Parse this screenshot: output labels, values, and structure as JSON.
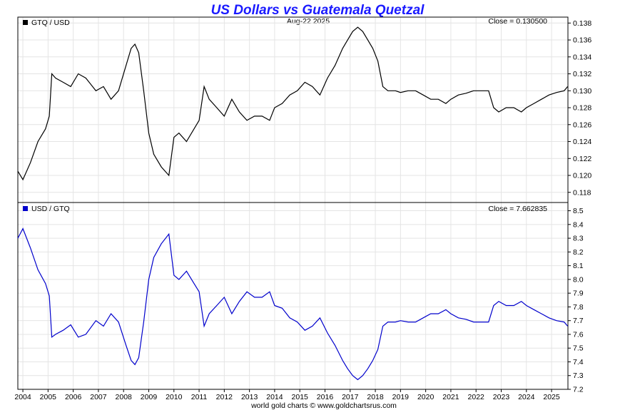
{
  "chart_data": {
    "type": "line",
    "title": "US Dollars vs Guatemala Quetzal",
    "date_label": "Aug-22  2025",
    "footer": "world gold charts © www.goldchartsrus.com",
    "x_ticks": [
      "2004",
      "2005",
      "2006",
      "2007",
      "2008",
      "2009",
      "2010",
      "2011",
      "2012",
      "2013",
      "2014",
      "2015",
      "2016",
      "2017",
      "2018",
      "2019",
      "2020",
      "2021",
      "2022",
      "2023",
      "2024",
      "2025"
    ],
    "x_range": [
      2003.8,
      2025.65
    ],
    "panels": [
      {
        "series_name": "GTQ / USD",
        "color": "#000000",
        "close_label": "Close = 0.130500",
        "ylim": [
          0.1168,
          0.1387
        ],
        "y_ticks": [
          "0.118",
          "0.120",
          "0.122",
          "0.124",
          "0.126",
          "0.128",
          "0.130",
          "0.132",
          "0.134",
          "0.136",
          "0.138"
        ],
        "x": [
          2003.8,
          2004.0,
          2004.3,
          2004.6,
          2004.9,
          2005.05,
          2005.15,
          2005.3,
          2005.6,
          2005.9,
          2006.2,
          2006.5,
          2006.9,
          2007.2,
          2007.5,
          2007.8,
          2008.1,
          2008.3,
          2008.45,
          2008.6,
          2008.8,
          2009.0,
          2009.2,
          2009.5,
          2009.8,
          2010.0,
          2010.2,
          2010.5,
          2010.8,
          2011.0,
          2011.2,
          2011.4,
          2011.7,
          2012.0,
          2012.3,
          2012.6,
          2012.9,
          2013.2,
          2013.5,
          2013.8,
          2014.0,
          2014.3,
          2014.6,
          2014.9,
          2015.2,
          2015.5,
          2015.8,
          2016.1,
          2016.4,
          2016.7,
          2016.9,
          2017.1,
          2017.3,
          2017.5,
          2017.7,
          2017.9,
          2018.1,
          2018.3,
          2018.5,
          2018.8,
          2019.0,
          2019.3,
          2019.6,
          2019.9,
          2020.2,
          2020.5,
          2020.8,
          2021.0,
          2021.3,
          2021.6,
          2021.9,
          2022.2,
          2022.5,
          2022.7,
          2022.9,
          2023.2,
          2023.5,
          2023.8,
          2024.0,
          2024.3,
          2024.6,
          2024.9,
          2025.2,
          2025.5,
          2025.64
        ],
        "y": [
          0.1205,
          0.1195,
          0.1215,
          0.124,
          0.1255,
          0.127,
          0.132,
          0.1315,
          0.131,
          0.1305,
          0.132,
          0.1315,
          0.13,
          0.1305,
          0.129,
          0.13,
          0.133,
          0.135,
          0.1355,
          0.1345,
          0.13,
          0.125,
          0.1225,
          0.121,
          0.12,
          0.1245,
          0.125,
          0.124,
          0.1255,
          0.1265,
          0.1305,
          0.129,
          0.128,
          0.127,
          0.129,
          0.1275,
          0.1265,
          0.127,
          0.127,
          0.1265,
          0.128,
          0.1285,
          0.1295,
          0.13,
          0.131,
          0.1305,
          0.1295,
          0.1315,
          0.133,
          0.135,
          0.136,
          0.137,
          0.1375,
          0.137,
          0.136,
          0.135,
          0.1335,
          0.1305,
          0.13,
          0.13,
          0.1298,
          0.13,
          0.13,
          0.1295,
          0.129,
          0.129,
          0.1285,
          0.129,
          0.1295,
          0.1297,
          0.13,
          0.13,
          0.13,
          0.128,
          0.1275,
          0.128,
          0.128,
          0.1275,
          0.128,
          0.1285,
          0.129,
          0.1295,
          0.1298,
          0.13,
          0.1305
        ]
      },
      {
        "series_name": "USD / GTQ",
        "color": "#0000cc",
        "close_label": "Close = 7.662835",
        "ylim": [
          7.2,
          8.56
        ],
        "y_ticks": [
          "7.2",
          "7.3",
          "7.4",
          "7.5",
          "7.6",
          "7.7",
          "7.8",
          "7.9",
          "8.0",
          "8.1",
          "8.2",
          "8.3",
          "8.4",
          "8.5"
        ],
        "x": [
          2003.8,
          2004.0,
          2004.3,
          2004.6,
          2004.9,
          2005.05,
          2005.15,
          2005.3,
          2005.6,
          2005.9,
          2006.2,
          2006.5,
          2006.9,
          2007.2,
          2007.5,
          2007.8,
          2008.1,
          2008.3,
          2008.45,
          2008.6,
          2008.8,
          2009.0,
          2009.2,
          2009.5,
          2009.8,
          2010.0,
          2010.2,
          2010.5,
          2010.8,
          2011.0,
          2011.2,
          2011.4,
          2011.7,
          2012.0,
          2012.3,
          2012.6,
          2012.9,
          2013.2,
          2013.5,
          2013.8,
          2014.0,
          2014.3,
          2014.6,
          2014.9,
          2015.2,
          2015.5,
          2015.8,
          2016.1,
          2016.4,
          2016.7,
          2016.9,
          2017.1,
          2017.3,
          2017.5,
          2017.7,
          2017.9,
          2018.1,
          2018.3,
          2018.5,
          2018.8,
          2019.0,
          2019.3,
          2019.6,
          2019.9,
          2020.2,
          2020.5,
          2020.8,
          2021.0,
          2021.3,
          2021.6,
          2021.9,
          2022.2,
          2022.5,
          2022.7,
          2022.9,
          2023.2,
          2023.5,
          2023.8,
          2024.0,
          2024.3,
          2024.6,
          2024.9,
          2025.2,
          2025.5,
          2025.64
        ],
        "y": [
          8.3,
          8.37,
          8.23,
          8.07,
          7.97,
          7.88,
          7.58,
          7.6,
          7.63,
          7.67,
          7.58,
          7.6,
          7.7,
          7.66,
          7.75,
          7.69,
          7.52,
          7.41,
          7.38,
          7.43,
          7.69,
          8.0,
          8.16,
          8.26,
          8.33,
          8.03,
          8.0,
          8.06,
          7.97,
          7.91,
          7.66,
          7.75,
          7.81,
          7.87,
          7.75,
          7.84,
          7.91,
          7.87,
          7.87,
          7.91,
          7.81,
          7.79,
          7.72,
          7.69,
          7.63,
          7.66,
          7.72,
          7.61,
          7.52,
          7.41,
          7.35,
          7.3,
          7.27,
          7.3,
          7.35,
          7.41,
          7.49,
          7.66,
          7.69,
          7.69,
          7.7,
          7.69,
          7.69,
          7.72,
          7.75,
          7.75,
          7.78,
          7.75,
          7.72,
          7.71,
          7.69,
          7.69,
          7.69,
          7.81,
          7.84,
          7.81,
          7.81,
          7.84,
          7.81,
          7.78,
          7.75,
          7.72,
          7.7,
          7.69,
          7.66
        ]
      }
    ]
  }
}
